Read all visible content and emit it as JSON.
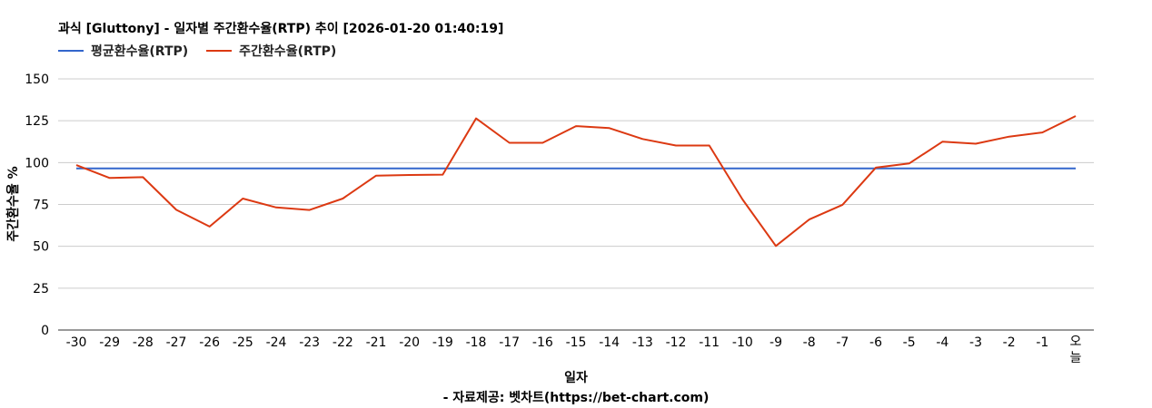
{
  "chart_data": {
    "type": "line",
    "title": "과식 [Gluttony] - 일자별 주간환수율(RTP) 추이 [2026-01-20 01:40:19]",
    "xlabel": "일자",
    "ylabel": "주간환수율 %",
    "source": "- 자료제공: 벳차트(https://bet-chart.com)",
    "ylim": [
      0,
      150
    ],
    "yticks": [
      "150",
      "125",
      "100",
      "75",
      "50",
      "25",
      "0"
    ],
    "ytick_values": [
      150,
      125,
      100,
      75,
      50,
      25,
      0
    ],
    "categories": [
      "-30",
      "-29",
      "-28",
      "-27",
      "-26",
      "-25",
      "-24",
      "-23",
      "-22",
      "-21",
      "-20",
      "-19",
      "-18",
      "-17",
      "-16",
      "-15",
      "-14",
      "-13",
      "-12",
      "-11",
      "-10",
      "-9",
      "-8",
      "-7",
      "-6",
      "-5",
      "-4",
      "-3",
      "-2",
      "-1",
      "오늘"
    ],
    "legend_position": "top-left",
    "grid": true,
    "series": [
      {
        "name": "평균환수율(RTP)",
        "color": "#3366cc",
        "values": [
          96.5,
          96.5,
          96.5,
          96.5,
          96.5,
          96.5,
          96.5,
          96.5,
          96.5,
          96.5,
          96.5,
          96.5,
          96.5,
          96.5,
          96.5,
          96.5,
          96.5,
          96.5,
          96.5,
          96.5,
          96.5,
          96.5,
          96.5,
          96.5,
          96.5,
          96.5,
          96.5,
          96.5,
          96.5,
          96.5,
          96.5
        ]
      },
      {
        "name": "주간환수율(RTP)",
        "color": "#dc3912",
        "values": [
          98.5,
          90.8,
          91.3,
          71.8,
          61.8,
          78.5,
          73.2,
          71.7,
          78.5,
          92.2,
          92.6,
          92.8,
          126.4,
          111.8,
          111.8,
          121.8,
          120.6,
          114.1,
          110.2,
          110.2,
          78.0,
          50.2,
          66.0,
          74.8,
          97.0,
          99.5,
          112.5,
          111.3,
          115.5,
          118.0,
          127.8
        ]
      }
    ]
  }
}
